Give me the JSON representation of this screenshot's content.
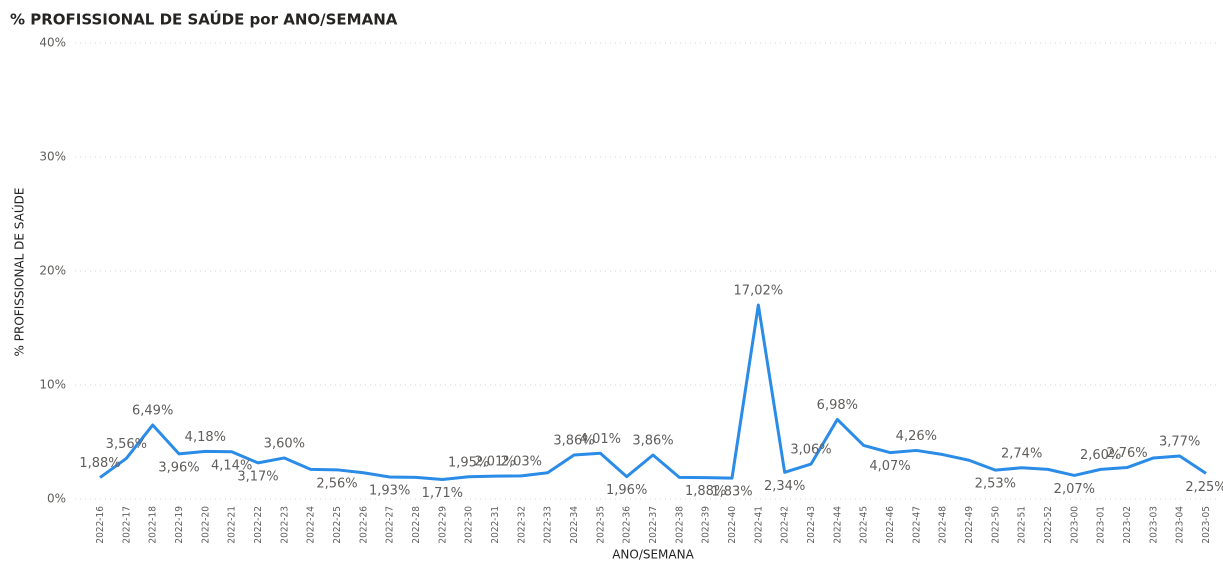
{
  "chart_data": {
    "type": "line",
    "title": "% PROFISSIONAL DE SAÚDE por ANO/SEMANA",
    "x_label": "ANO/SEMANA",
    "y_label": "% PROFISSIONAL DE SAÚDE",
    "categories": [
      "2022-16",
      "2022-17",
      "2022-18",
      "2022-19",
      "2022-20",
      "2022-21",
      "2022-22",
      "2022-23",
      "2022-24",
      "2022-25",
      "2022-26",
      "2022-27",
      "2022-28",
      "2022-29",
      "2022-30",
      "2022-31",
      "2022-32",
      "2022-33",
      "2022-34",
      "2022-35",
      "2022-36",
      "2022-37",
      "2022-38",
      "2022-39",
      "2022-40",
      "2022-41",
      "2022-42",
      "2022-43",
      "2022-44",
      "2022-45",
      "2022-46",
      "2022-47",
      "2022-48",
      "2022-49",
      "2022-50",
      "2022-51",
      "2022-52",
      "2023-00",
      "2023-01",
      "2023-02",
      "2023-03",
      "2023-04",
      "2023-05"
    ],
    "series": [
      {
        "name": "% PROFISSIONAL DE SAÚDE",
        "color": "#2b8ce8",
        "values": [
          1.88,
          3.56,
          6.49,
          3.96,
          4.18,
          4.14,
          3.17,
          3.6,
          2.6,
          2.56,
          2.3,
          1.93,
          1.9,
          1.71,
          1.95,
          2.01,
          2.03,
          2.3,
          3.86,
          4.01,
          1.96,
          3.86,
          1.9,
          1.88,
          1.83,
          17.02,
          2.34,
          3.06,
          6.98,
          4.7,
          4.07,
          4.26,
          3.9,
          3.4,
          2.53,
          2.74,
          2.6,
          2.07,
          2.6,
          2.76,
          3.6,
          3.77,
          2.25
        ],
        "value_labels": [
          "1,88%",
          "3,56%",
          "6,49%",
          "3,96%",
          "4,18%",
          "4,14%",
          "3,17%",
          "3,60%",
          null,
          "2,56%",
          null,
          "1,93%",
          null,
          "1,71%",
          "1,95%",
          "2,01%",
          "2,03%",
          null,
          "3,86%",
          "4,01%",
          "1,96%",
          "3,86%",
          null,
          "1,88%",
          "1,83%",
          "17,02%",
          "2,34%",
          "3,06%",
          "6,98%",
          null,
          "4,07%",
          "4,26%",
          null,
          null,
          "2,53%",
          "2,74%",
          null,
          "2,07%",
          "2,60%",
          "2,76%",
          null,
          "3,77%",
          "2,25%"
        ]
      }
    ],
    "ylim": [
      0,
      40
    ],
    "yticks": [
      {
        "value": 0,
        "label": "0%"
      },
      {
        "value": 10,
        "label": "10%"
      },
      {
        "value": 20,
        "label": "20%"
      },
      {
        "value": 30,
        "label": "30%"
      },
      {
        "value": 40,
        "label": "40%"
      }
    ],
    "grid": true
  }
}
